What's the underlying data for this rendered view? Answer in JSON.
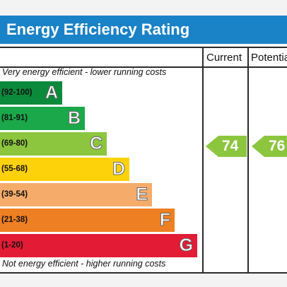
{
  "title": "Energy Efficiency Rating",
  "columns": {
    "current": "Current",
    "potential": "Potential"
  },
  "chart_data": {
    "type": "bar",
    "title": "Energy Efficiency Rating",
    "top_note": "Very energy efficient - lower running costs",
    "bottom_note": "Not energy efficient - higher running costs",
    "bands": [
      {
        "range": "(92-100)",
        "letter": "A",
        "color": "#0c8a3c"
      },
      {
        "range": "(81-91)",
        "letter": "B",
        "color": "#1ba84a"
      },
      {
        "range": "(69-80)",
        "letter": "C",
        "color": "#8cc63f"
      },
      {
        "range": "(55-68)",
        "letter": "D",
        "color": "#fdd20b"
      },
      {
        "range": "(39-54)",
        "letter": "E",
        "color": "#f5ac6a"
      },
      {
        "range": "(21-38)",
        "letter": "F",
        "color": "#ee7f22"
      },
      {
        "range": "(1-20)",
        "letter": "G",
        "color": "#e31b35"
      }
    ],
    "current": {
      "value": 74,
      "band": "C",
      "color": "#8cc63f"
    },
    "potential": {
      "value": 76,
      "band": "C",
      "color": "#8cc63f"
    }
  }
}
